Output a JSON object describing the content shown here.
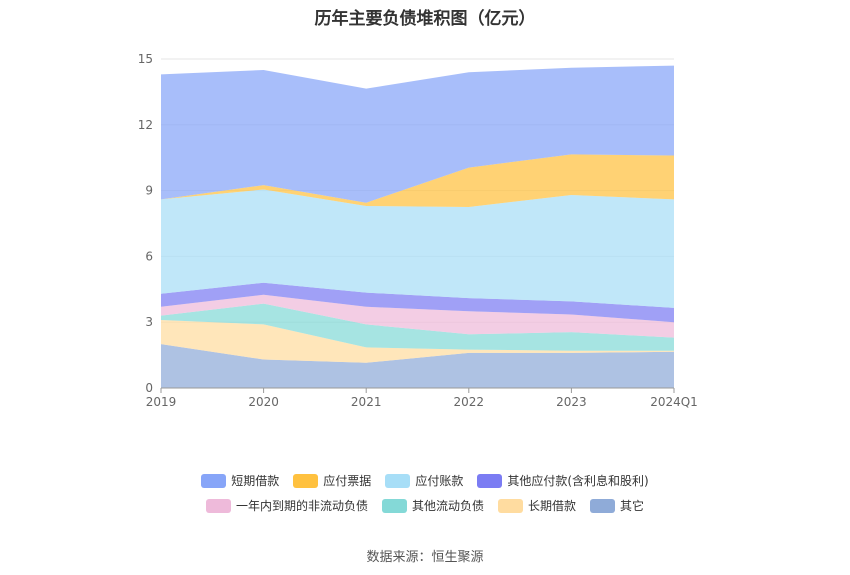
{
  "title": "历年主要负债堆积图（亿元）",
  "source": "数据来源：恒生聚源",
  "chart_data": {
    "type": "area",
    "stacked": true,
    "title": "历年主要负债堆积图（亿元）",
    "x": [
      "2019",
      "2020",
      "2021",
      "2022",
      "2023",
      "2024Q1"
    ],
    "ylim": [
      0,
      15
    ],
    "yticks": [
      0,
      3,
      6,
      9,
      12,
      15
    ],
    "grid": true,
    "legend_position": "bottom",
    "series": [
      {
        "name": "其它",
        "color": "#8fabd8",
        "values": [
          2.0,
          1.3,
          1.15,
          1.6,
          1.6,
          1.65
        ]
      },
      {
        "name": "长期借款",
        "color": "#ffdca0",
        "values": [
          1.1,
          1.6,
          0.7,
          0.15,
          0.1,
          0.05
        ]
      },
      {
        "name": "其他流动负债",
        "color": "#84d9d7",
        "values": [
          0.2,
          0.95,
          1.05,
          0.7,
          0.85,
          0.6
        ]
      },
      {
        "name": "一年内到期的非流动负债",
        "color": "#eebada",
        "values": [
          0.4,
          0.4,
          0.8,
          1.05,
          0.8,
          0.7
        ]
      },
      {
        "name": "其他应付款(含利息和股利)",
        "color": "#7b7cf3",
        "values": [
          0.6,
          0.55,
          0.65,
          0.6,
          0.6,
          0.65
        ]
      },
      {
        "name": "应付账款",
        "color": "#a7def7",
        "values": [
          4.3,
          4.25,
          3.95,
          4.15,
          4.85,
          4.95
        ]
      },
      {
        "name": "应付票据",
        "color": "#ffc13f",
        "values": [
          0.0,
          0.2,
          0.15,
          1.8,
          1.85,
          2.0
        ]
      },
      {
        "name": "短期借款",
        "color": "#87a5f8",
        "values": [
          5.7,
          5.25,
          5.2,
          4.35,
          3.95,
          4.1
        ]
      }
    ]
  },
  "legend_rows": [
    [
      {
        "label": "短期借款",
        "color": "#87a5f8"
      },
      {
        "label": "应付票据",
        "color": "#ffc13f"
      },
      {
        "label": "应付账款",
        "color": "#a7def7"
      },
      {
        "label": "其他应付款(含利息和股利)",
        "color": "#7b7cf3"
      }
    ],
    [
      {
        "label": "一年内到期的非流动负债",
        "color": "#eebada"
      },
      {
        "label": "其他流动负债",
        "color": "#84d9d7"
      },
      {
        "label": "长期借款",
        "color": "#ffdca0"
      },
      {
        "label": "其它",
        "color": "#8fabd8"
      }
    ]
  ]
}
